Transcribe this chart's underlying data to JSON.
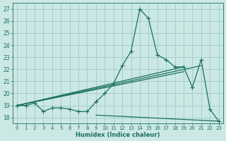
{
  "xlabel": "Humidex (Indice chaleur)",
  "bg_color": "#cce8e4",
  "grid_color": "#99cccc",
  "line_color": "#1a7060",
  "xlim": [
    -0.5,
    23.5
  ],
  "ylim": [
    17.5,
    27.5
  ],
  "xticks": [
    0,
    1,
    2,
    3,
    4,
    5,
    6,
    7,
    8,
    9,
    10,
    11,
    12,
    13,
    14,
    15,
    16,
    17,
    18,
    19,
    20,
    21,
    22,
    23
  ],
  "yticks": [
    18,
    19,
    20,
    21,
    22,
    23,
    24,
    25,
    26,
    27
  ],
  "line1_x": [
    0,
    1,
    2,
    3,
    4,
    5,
    6,
    7,
    8,
    9,
    10,
    11,
    12,
    13,
    14,
    15,
    16,
    17,
    18,
    19,
    20,
    21,
    22,
    23
  ],
  "line1_y": [
    19.0,
    19.0,
    19.2,
    18.5,
    18.8,
    18.8,
    18.7,
    18.5,
    18.5,
    19.3,
    20.0,
    20.8,
    22.3,
    23.5,
    27.0,
    26.2,
    23.2,
    22.8,
    22.2,
    22.2,
    20.5,
    22.8,
    18.7,
    17.7
  ],
  "line2_x": [
    0,
    19
  ],
  "line2_y": [
    19.0,
    21.8
  ],
  "line3_x": [
    0,
    21
  ],
  "line3_y": [
    19.0,
    22.3
  ],
  "line4_x": [
    9,
    23
  ],
  "line4_y": [
    18.2,
    17.7
  ],
  "line5_x": [
    0,
    19
  ],
  "line5_y": [
    19.0,
    22.2
  ]
}
